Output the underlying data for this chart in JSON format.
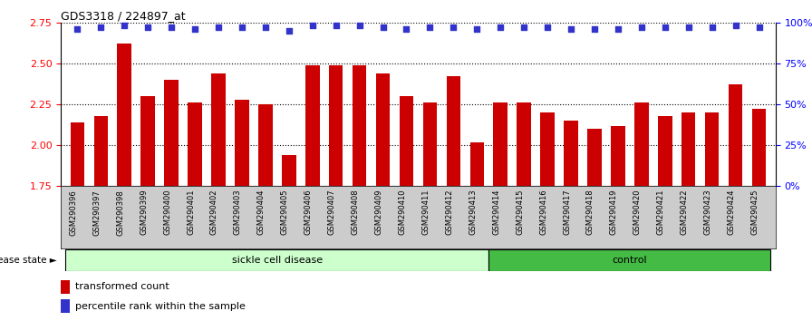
{
  "title": "GDS3318 / 224897_at",
  "samples": [
    "GSM290396",
    "GSM290397",
    "GSM290398",
    "GSM290399",
    "GSM290400",
    "GSM290401",
    "GSM290402",
    "GSM290403",
    "GSM290404",
    "GSM290405",
    "GSM290406",
    "GSM290407",
    "GSM290408",
    "GSM290409",
    "GSM290410",
    "GSM290411",
    "GSM290412",
    "GSM290413",
    "GSM290414",
    "GSM290415",
    "GSM290416",
    "GSM290417",
    "GSM290418",
    "GSM290419",
    "GSM290420",
    "GSM290421",
    "GSM290422",
    "GSM290423",
    "GSM290424",
    "GSM290425"
  ],
  "transformed_count": [
    2.14,
    2.18,
    2.62,
    2.3,
    2.4,
    2.26,
    2.44,
    2.28,
    2.25,
    1.94,
    2.49,
    2.49,
    2.49,
    2.44,
    2.3,
    2.26,
    2.42,
    2.02,
    2.26,
    2.26,
    2.2,
    2.15,
    2.1,
    2.12,
    2.26,
    2.18,
    2.2,
    2.2,
    2.37,
    2.22
  ],
  "percentile_rank": [
    96,
    97,
    98,
    97,
    97,
    96,
    97,
    97,
    97,
    95,
    98,
    98,
    98,
    97,
    96,
    97,
    97,
    96,
    97,
    97,
    97,
    96,
    96,
    96,
    97,
    97,
    97,
    97,
    98,
    97
  ],
  "sickle_cell_count": 18,
  "control_count": 12,
  "ylim_left": [
    1.75,
    2.75
  ],
  "ylim_right": [
    0,
    100
  ],
  "yticks_left": [
    1.75,
    2.0,
    2.25,
    2.5,
    2.75
  ],
  "yticks_right": [
    0,
    25,
    50,
    75,
    100
  ],
  "bar_color": "#cc0000",
  "dot_color": "#3333cc",
  "sickle_bg": "#ccffcc",
  "control_bg": "#44bb44",
  "xlabel_bg": "#cccccc",
  "disease_label": "sickle cell disease",
  "control_label": "control",
  "legend_bar_label": "transformed count",
  "legend_dot_label": "percentile rank within the sample"
}
